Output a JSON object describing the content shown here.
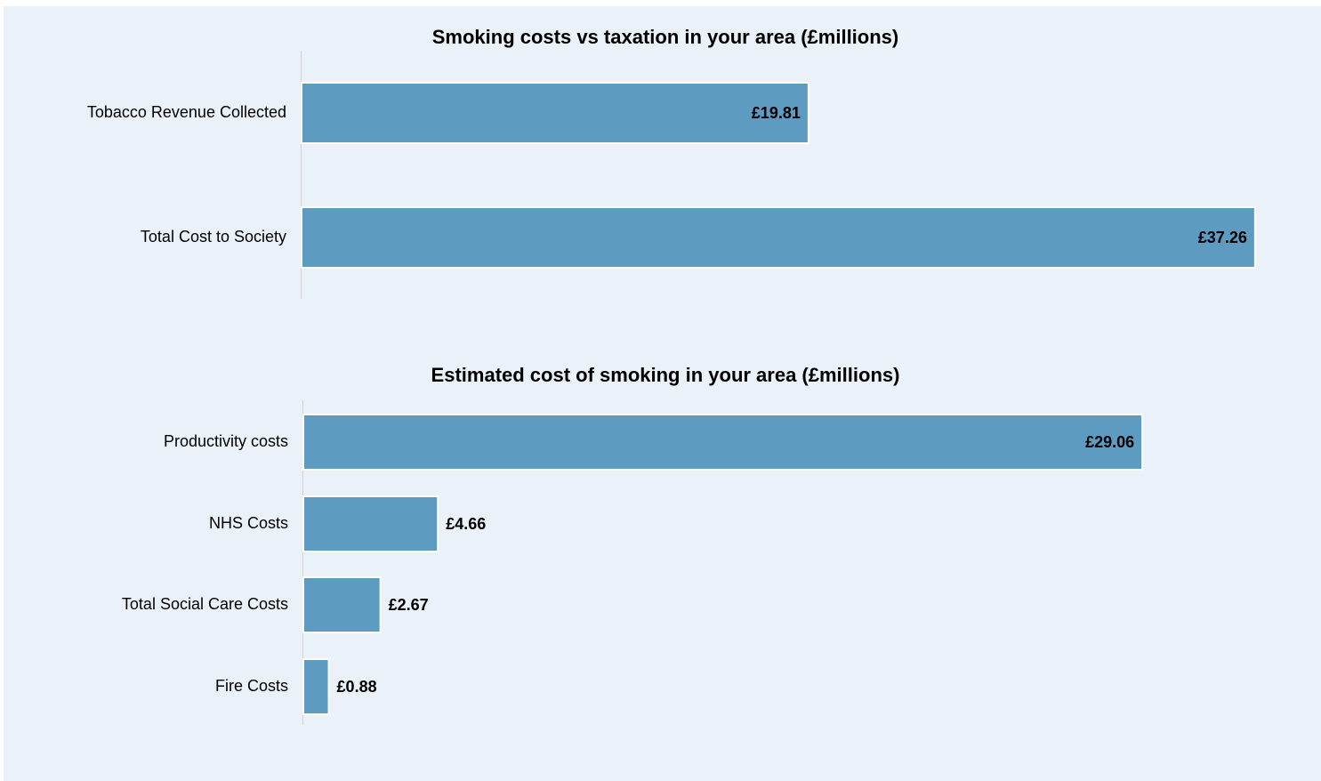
{
  "chart_data": [
    {
      "type": "barh",
      "title": "Smoking costs vs taxation in your area (£millions)",
      "categories": [
        "Tobacco Revenue Collected",
        "Total Cost to Society"
      ],
      "values": [
        19.81,
        37.26
      ],
      "value_labels": [
        "£19.81",
        "£37.26"
      ],
      "color": "#5d9bc0",
      "xlim": [
        0,
        37.3
      ]
    },
    {
      "type": "barh",
      "title": "Estimated cost of smoking in your area (£millions)",
      "categories": [
        "Productivity costs",
        "NHS Costs",
        "Total Social Care Costs",
        "Fire Costs"
      ],
      "values": [
        29.06,
        4.66,
        2.67,
        0.88
      ],
      "value_labels": [
        "£29.06",
        "£4.66",
        "£2.67",
        "£0.88"
      ],
      "color": "#5d9bc0",
      "xlim": [
        0,
        33
      ]
    }
  ]
}
